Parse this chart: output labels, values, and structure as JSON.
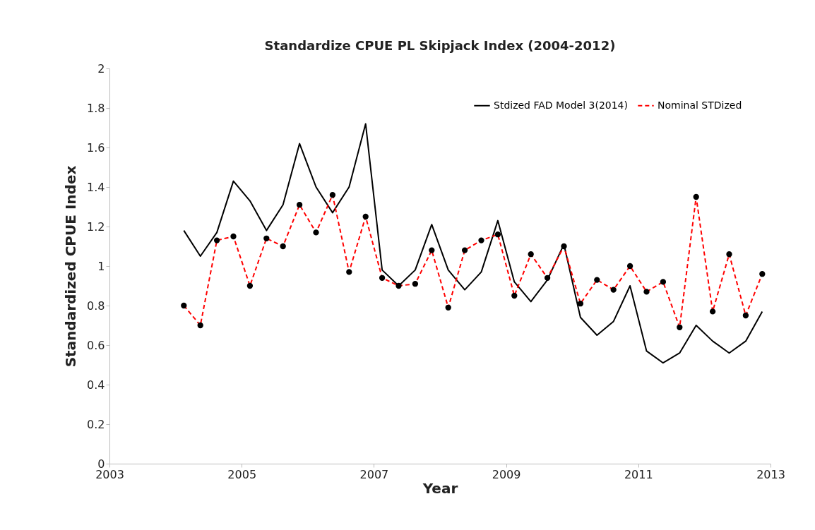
{
  "chart_data": {
    "type": "line",
    "title": "Standardize CPUE PL Skipjack Index (2004-2012)",
    "xlabel": "Year",
    "ylabel": "Standardized CPUE Index",
    "x": [
      2004.125,
      2004.375,
      2004.625,
      2004.875,
      2005.125,
      2005.375,
      2005.625,
      2005.875,
      2006.125,
      2006.375,
      2006.625,
      2006.875,
      2007.125,
      2007.375,
      2007.625,
      2007.875,
      2008.125,
      2008.375,
      2008.625,
      2008.875,
      2009.125,
      2009.375,
      2009.625,
      2009.875,
      2010.125,
      2010.375,
      2010.625,
      2010.875,
      2011.125,
      2011.375,
      2011.625,
      2011.875,
      2012.125,
      2012.375,
      2012.625,
      2012.875
    ],
    "series": [
      {
        "name": "Stdized FAD Model 3(2014)",
        "color": "#000000",
        "line_style": "solid",
        "marker": "none",
        "values": [
          1.18,
          1.05,
          1.17,
          1.43,
          1.33,
          1.18,
          1.31,
          1.62,
          1.4,
          1.27,
          1.4,
          1.72,
          0.98,
          0.9,
          0.98,
          1.21,
          0.98,
          0.88,
          0.97,
          1.23,
          0.92,
          0.82,
          0.93,
          1.11,
          0.74,
          0.65,
          0.72,
          0.9,
          0.57,
          0.51,
          0.56,
          0.7,
          0.62,
          0.56,
          0.62,
          0.77
        ]
      },
      {
        "name": "Nominal STDized",
        "color": "#ff0000",
        "line_style": "dashed",
        "marker": "circle",
        "values": [
          0.8,
          0.7,
          1.13,
          1.15,
          0.9,
          1.14,
          1.1,
          1.31,
          1.17,
          1.36,
          0.97,
          1.25,
          0.94,
          0.9,
          0.91,
          1.08,
          0.79,
          1.08,
          1.13,
          1.16,
          0.85,
          1.06,
          0.94,
          1.1,
          0.81,
          0.93,
          0.88,
          1.0,
          0.87,
          0.92,
          0.69,
          1.35,
          0.77,
          1.06,
          0.75,
          0.96
        ]
      }
    ],
    "xlim": [
      2003,
      2013
    ],
    "xticks": [
      2003,
      2005,
      2007,
      2009,
      2011,
      2013
    ],
    "ylim": [
      0,
      2
    ],
    "yticks": [
      0,
      0.2,
      0.4,
      0.6,
      0.8,
      1,
      1.2,
      1.4,
      1.6,
      1.8,
      2
    ],
    "grid": false,
    "legend": "top right"
  }
}
